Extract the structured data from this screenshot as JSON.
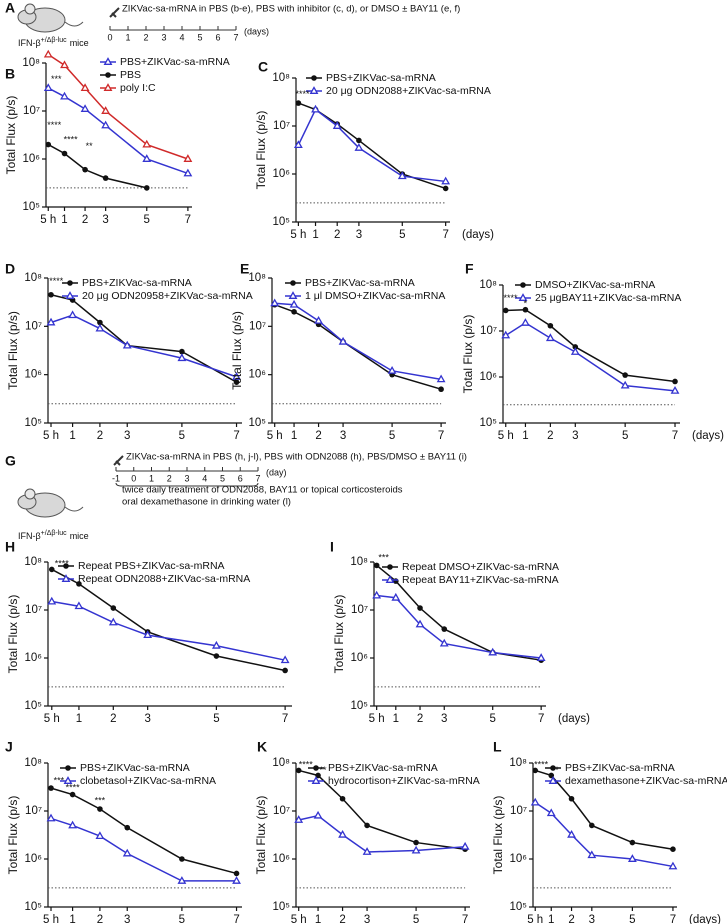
{
  "chart_data": [
    {
      "type": "line",
      "panel": "B",
      "y_label": "Total Flux (p/s)",
      "log_y": true,
      "ylim": [
        100000,
        100000000
      ],
      "xlim": [
        0.1,
        7.2
      ],
      "yticks": [
        {
          "value": 100000,
          "label": "10⁵"
        },
        {
          "value": 1000000,
          "label": "10⁶"
        },
        {
          "value": 10000000,
          "label": "10⁷"
        },
        {
          "value": 100000000,
          "label": "10⁸"
        }
      ],
      "xticks": [
        {
          "value": 0.21,
          "label": "5 h"
        },
        1,
        2,
        3,
        5,
        7
      ],
      "threshold": 250000,
      "x": [
        0.21,
        1,
        2,
        3,
        5,
        7
      ],
      "series": [
        {
          "name": "PBS+ZIKVac-sa-mRNA",
          "color": "#3434d0",
          "marker": "triangle",
          "values": [
            30000000,
            20000000,
            11000000,
            5000000,
            1000000,
            500000
          ]
        },
        {
          "name": "PBS",
          "color": "#111111",
          "marker": "circle",
          "values": [
            2000000,
            1300000,
            600000,
            400000,
            250000,
            null
          ]
        },
        {
          "name": "poly I:C",
          "color": "#d02a2a",
          "marker": "triangle",
          "values": [
            150000000,
            90000000,
            30000000,
            10000000,
            2000000,
            1000000
          ]
        }
      ],
      "annotations": [
        {
          "text": "***",
          "x": 0.6,
          "y": 45000000
        },
        {
          "text": "****",
          "x": 0.5,
          "y": 5000000
        },
        {
          "text": "****",
          "x": 1.3,
          "y": 2500000
        },
        {
          "text": "**",
          "x": 2.2,
          "y": 1800000
        }
      ]
    },
    {
      "type": "line",
      "panel": "C",
      "y_label": "Total Flux (p/s)",
      "log_y": true,
      "ylim": [
        100000,
        100000000
      ],
      "xlim": [
        0.1,
        7.2
      ],
      "x_unit": "(days)",
      "yticks": [
        {
          "value": 100000,
          "label": "10⁵"
        },
        {
          "value": 1000000,
          "label": "10⁶"
        },
        {
          "value": 10000000,
          "label": "10⁷"
        },
        {
          "value": 100000000,
          "label": "10⁸"
        }
      ],
      "xticks": [
        {
          "value": 0.21,
          "label": "5 h"
        },
        1,
        2,
        3,
        5,
        7
      ],
      "threshold": 250000,
      "x": [
        0.21,
        1,
        2,
        3,
        5,
        7
      ],
      "series": [
        {
          "name": "PBS+ZIKVac-sa-mRNA",
          "color": "#111111",
          "marker": "circle",
          "values": [
            30000000,
            22000000,
            11000000,
            5000000,
            1000000,
            500000
          ]
        },
        {
          "name": "20 μg ODN2088+ZIKVac-sa-mRNA",
          "color": "#3434d0",
          "marker": "triangle",
          "values": [
            4000000,
            22000000,
            10000000,
            3500000,
            900000,
            700000
          ]
        }
      ],
      "annotations": [
        {
          "text": "****",
          "x": 0.4,
          "y": 45000000
        }
      ]
    },
    {
      "type": "line",
      "panel": "D",
      "y_label": "Total Flux (p/s)",
      "log_y": true,
      "ylim": [
        100000,
        100000000
      ],
      "xlim": [
        0.1,
        7.2
      ],
      "yticks": [
        {
          "value": 100000,
          "label": "10⁵"
        },
        {
          "value": 1000000,
          "label": "10⁶"
        },
        {
          "value": 10000000,
          "label": "10⁷"
        },
        {
          "value": 100000000,
          "label": "10⁸"
        }
      ],
      "xticks": [
        {
          "value": 0.21,
          "label": "5 h"
        },
        1,
        2,
        3,
        5,
        7
      ],
      "threshold": 250000,
      "x": [
        0.21,
        1,
        2,
        3,
        5,
        7
      ],
      "series": [
        {
          "name": "PBS+ZIKVac-sa-mRNA",
          "color": "#111111",
          "marker": "circle",
          "values": [
            45000000,
            35000000,
            12000000,
            4000000,
            3000000,
            700000
          ]
        },
        {
          "name": "20 μg ODN20958+ZIKVac-sa-mRNA",
          "color": "#3434d0",
          "marker": "triangle",
          "values": [
            12000000,
            17000000,
            9000000,
            4000000,
            2200000,
            900000
          ]
        }
      ],
      "annotations": [
        {
          "text": "****",
          "x": 0.4,
          "y": 85000000
        }
      ]
    },
    {
      "type": "line",
      "panel": "E",
      "y_label": "Total Flux (p/s)",
      "log_y": true,
      "ylim": [
        100000,
        100000000
      ],
      "xlim": [
        0.1,
        7.2
      ],
      "yticks": [
        {
          "value": 100000,
          "label": "10⁵"
        },
        {
          "value": 1000000,
          "label": "10⁶"
        },
        {
          "value": 10000000,
          "label": "10⁷"
        },
        {
          "value": 100000000,
          "label": "10⁸"
        }
      ],
      "xticks": [
        {
          "value": 0.21,
          "label": "5 h"
        },
        1,
        2,
        3,
        5,
        7
      ],
      "threshold": 250000,
      "x": [
        0.21,
        1,
        2,
        3,
        5,
        7
      ],
      "series": [
        {
          "name": "PBS+ZIKVac-sa-mRNA",
          "color": "#111111",
          "marker": "circle",
          "values": [
            28000000,
            20000000,
            11000000,
            4800000,
            1000000,
            500000
          ]
        },
        {
          "name": "1 μl DMSO+ZIKVac-sa-mRNA",
          "color": "#3434d0",
          "marker": "triangle",
          "values": [
            30000000,
            28000000,
            13000000,
            4800000,
            1200000,
            800000
          ]
        }
      ],
      "annotations": []
    },
    {
      "type": "line",
      "panel": "F",
      "y_label": "Total Flux (p/s)",
      "log_y": true,
      "ylim": [
        100000,
        100000000
      ],
      "xlim": [
        0.1,
        7.2
      ],
      "x_unit": "(days)",
      "yticks": [
        {
          "value": 100000,
          "label": "10⁵"
        },
        {
          "value": 1000000,
          "label": "10⁶"
        },
        {
          "value": 10000000,
          "label": "10⁷"
        },
        {
          "value": 100000000,
          "label": "10⁸"
        }
      ],
      "xticks": [
        {
          "value": 0.21,
          "label": "5 h"
        },
        1,
        2,
        3,
        5,
        7
      ],
      "threshold": 250000,
      "x": [
        0.21,
        1,
        2,
        3,
        5,
        7
      ],
      "series": [
        {
          "name": "DMSO+ZIKVac-sa-mRNA",
          "color": "#111111",
          "marker": "circle",
          "values": [
            28000000,
            29000000,
            13000000,
            4500000,
            1100000,
            800000
          ]
        },
        {
          "name": "25 μgBAY11+ZIKVac-sa-mRNA",
          "color": "#3434d0",
          "marker": "triangle",
          "values": [
            8000000,
            15000000,
            7000000,
            3500000,
            650000,
            500000
          ]
        }
      ],
      "annotations": [
        {
          "text": "****",
          "x": 0.4,
          "y": 50000000
        },
        {
          "text": "*",
          "x": 1,
          "y": 38000000
        }
      ]
    },
    {
      "type": "line",
      "panel": "H",
      "y_label": "Total Flux (p/s)",
      "log_y": true,
      "ylim": [
        100000,
        100000000
      ],
      "xlim": [
        0.1,
        7.2
      ],
      "yticks": [
        {
          "value": 100000,
          "label": "10⁵"
        },
        {
          "value": 1000000,
          "label": "10⁶"
        },
        {
          "value": 10000000,
          "label": "10⁷"
        },
        {
          "value": 100000000,
          "label": "10⁸"
        }
      ],
      "xticks": [
        {
          "value": 0.21,
          "label": "5 h"
        },
        1,
        2,
        3,
        5,
        7
      ],
      "threshold": 250000,
      "x": [
        0.21,
        1,
        2,
        3,
        5,
        7
      ],
      "series": [
        {
          "name": "Repeat PBS+ZIKVac-sa-mRNA",
          "color": "#111111",
          "marker": "circle",
          "values": [
            70000000,
            35000000,
            11000000,
            3500000,
            1100000,
            550000
          ]
        },
        {
          "name": "Repeat ODN2088+ZIKVac-sa-mRNA",
          "color": "#3434d0",
          "marker": "triangle",
          "values": [
            15000000,
            12000000,
            5500000,
            3000000,
            1800000,
            900000
          ]
        }
      ],
      "annotations": [
        {
          "text": "****",
          "x": 0.5,
          "y": 90000000
        }
      ]
    },
    {
      "type": "line",
      "panel": "I",
      "y_label": "Total Flux (p/s)",
      "log_y": true,
      "ylim": [
        100000,
        100000000
      ],
      "xlim": [
        0.1,
        7.2
      ],
      "x_unit": "(days)",
      "yticks": [
        {
          "value": 100000,
          "label": "10⁵"
        },
        {
          "value": 1000000,
          "label": "10⁶"
        },
        {
          "value": 10000000,
          "label": "10⁷"
        },
        {
          "value": 100000000,
          "label": "10⁸"
        }
      ],
      "xticks": [
        {
          "value": 0.21,
          "label": "5 h"
        },
        1,
        2,
        3,
        5,
        7
      ],
      "threshold": 250000,
      "x": [
        0.21,
        1,
        2,
        3,
        5,
        7
      ],
      "series": [
        {
          "name": "Repeat DMSO+ZIKVac-sa-mRNA",
          "color": "#111111",
          "marker": "circle",
          "values": [
            85000000,
            40000000,
            11000000,
            4000000,
            1300000,
            900000
          ]
        },
        {
          "name": "Repeat BAY11+ZIKVac-sa-mRNA",
          "color": "#3434d0",
          "marker": "triangle",
          "values": [
            20000000,
            18000000,
            5000000,
            2000000,
            1300000,
            1000000
          ]
        }
      ],
      "annotations": [
        {
          "text": "***",
          "x": 0.5,
          "y": 120000000
        }
      ]
    },
    {
      "type": "line",
      "panel": "J",
      "y_label": "Total Flux (p/s)",
      "log_y": true,
      "ylim": [
        100000,
        100000000
      ],
      "xlim": [
        0.1,
        7.2
      ],
      "yticks": [
        {
          "value": 100000,
          "label": "10⁵"
        },
        {
          "value": 1000000,
          "label": "10⁶"
        },
        {
          "value": 10000000,
          "label": "10⁷"
        },
        {
          "value": 100000000,
          "label": "10⁸"
        }
      ],
      "xticks": [
        {
          "value": 0.21,
          "label": "5 h"
        },
        1,
        2,
        3,
        5,
        7
      ],
      "threshold": 250000,
      "x": [
        0.21,
        1,
        2,
        3,
        5,
        7
      ],
      "series": [
        {
          "name": "PBS+ZIKVac-sa-mRNA",
          "color": "#111111",
          "marker": "circle",
          "values": [
            30000000,
            22000000,
            11000000,
            4500000,
            1000000,
            500000
          ]
        },
        {
          "name": "clobetasol+ZIKVac-sa-mRNA",
          "color": "#3434d0",
          "marker": "triangle",
          "values": [
            7000000,
            5000000,
            3000000,
            1300000,
            350000,
            350000
          ]
        }
      ],
      "annotations": [
        {
          "text": "***",
          "x": 0.5,
          "y": 42000000
        },
        {
          "text": "****",
          "x": 1,
          "y": 30000000
        },
        {
          "text": "***",
          "x": 2,
          "y": 16000000
        }
      ]
    },
    {
      "type": "line",
      "panel": "K",
      "y_label": "Total Flux (p/s)",
      "log_y": true,
      "ylim": [
        100000,
        100000000
      ],
      "xlim": [
        0.1,
        7.2
      ],
      "yticks": [
        {
          "value": 100000,
          "label": "10⁵"
        },
        {
          "value": 1000000,
          "label": "10⁶"
        },
        {
          "value": 10000000,
          "label": "10⁷"
        },
        {
          "value": 100000000,
          "label": "10⁸"
        }
      ],
      "xticks": [
        {
          "value": 0.21,
          "label": "5 h"
        },
        1,
        2,
        3,
        5,
        7
      ],
      "threshold": 250000,
      "x": [
        0.21,
        1,
        2,
        3,
        5,
        7
      ],
      "series": [
        {
          "name": "PBS+ZIKVac-sa-mRNA",
          "color": "#111111",
          "marker": "circle",
          "values": [
            70000000,
            55000000,
            18000000,
            5000000,
            2200000,
            1600000
          ]
        },
        {
          "name": "hydrocortison+ZIKVac-sa-mRNA",
          "color": "#3434d0",
          "marker": "triangle",
          "values": [
            6500000,
            8000000,
            3200000,
            1400000,
            1500000,
            1800000
          ]
        }
      ],
      "annotations": [
        {
          "text": "****",
          "x": 0.5,
          "y": 90000000
        },
        {
          "text": "**",
          "x": 1.2,
          "y": 70000000
        }
      ]
    },
    {
      "type": "line",
      "panel": "L",
      "y_label": "Total Flux (p/s)",
      "log_y": true,
      "ylim": [
        100000,
        100000000
      ],
      "xlim": [
        0.1,
        7.2
      ],
      "x_unit": "(days)",
      "yticks": [
        {
          "value": 100000,
          "label": "10⁵"
        },
        {
          "value": 1000000,
          "label": "10⁶"
        },
        {
          "value": 10000000,
          "label": "10⁷"
        },
        {
          "value": 100000000,
          "label": "10⁸"
        }
      ],
      "xticks": [
        {
          "value": 0.21,
          "label": "5 h"
        },
        1,
        2,
        3,
        5,
        7
      ],
      "threshold": 250000,
      "x": [
        0.21,
        1,
        2,
        3,
        5,
        7
      ],
      "series": [
        {
          "name": "PBS+ZIKVac-sa-mRNA",
          "color": "#111111",
          "marker": "circle",
          "values": [
            70000000,
            55000000,
            18000000,
            5000000,
            2200000,
            1600000
          ]
        },
        {
          "name": "dexamethasone+ZIKVac-sa-mRNA",
          "color": "#3434d0",
          "marker": "triangle",
          "values": [
            15000000,
            9000000,
            3200000,
            1200000,
            1000000,
            700000
          ]
        }
      ],
      "annotations": [
        {
          "text": "****",
          "x": 0.5,
          "y": 90000000
        },
        {
          "text": "**",
          "x": 1.2,
          "y": 70000000
        }
      ]
    }
  ],
  "timelines": [
    {
      "panel": "A",
      "caption": "ZIKVac-sa-mRNA in PBS (b-e), PBS with inhibitor (c, d), or DMSO ± BAY11 (e, f)",
      "mouse": [
        "IFN-β",
        "+/Δβ-luc",
        "mice"
      ],
      "ticks": [
        0,
        1,
        2,
        3,
        4,
        5,
        6,
        7
      ],
      "unit": "(days)",
      "notes": []
    },
    {
      "panel": "G",
      "caption": "ZIKVac-sa-mRNA in PBS (h, j-l), PBS with ODN2088 (h), PBS/DMSO ± BAY11 (i)",
      "mouse": [
        "IFN-β",
        "+/Δβ-luc",
        "mice"
      ],
      "ticks": [
        -1,
        0,
        1,
        2,
        3,
        4,
        5,
        6,
        7
      ],
      "unit": "(day)",
      "notes": [
        "twice daily treatment of ODN2088, BAY11 or topical corticosteroids",
        "oral dexamethasone in drinking water (l)"
      ]
    }
  ]
}
